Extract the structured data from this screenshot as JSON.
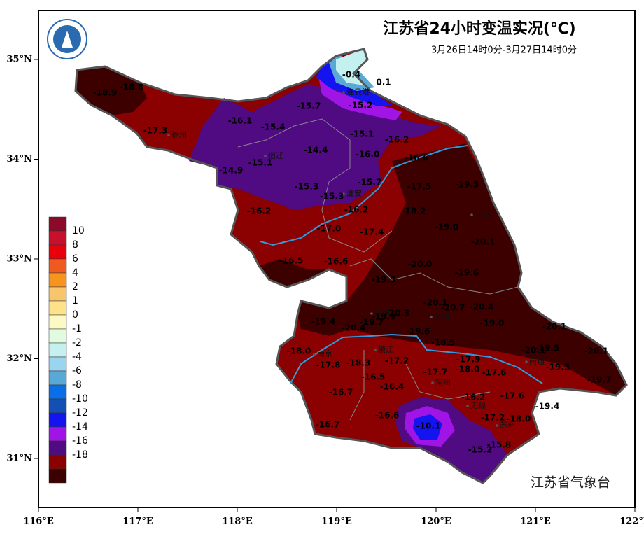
{
  "header": {
    "title": "江苏省24小时变温实况(℃)",
    "subtitle": "3月26日14时0分-3月27日14时0分"
  },
  "footer": "江苏省气象台",
  "axes": {
    "x_labels": [
      "116°E",
      "117°E",
      "118°E",
      "119°E",
      "120°E",
      "121°E",
      "122°E"
    ],
    "y_labels": [
      "35°N",
      "34°N",
      "33°N",
      "32°N",
      "31°N"
    ]
  },
  "legend": {
    "labels": [
      "10",
      "8",
      "6",
      "4",
      "2",
      "1",
      "0",
      "-1",
      "-2",
      "-4",
      "-6",
      "-8",
      "-10",
      "-12",
      "-14",
      "-16",
      "-18"
    ],
    "colors": [
      "#8b0a2a",
      "#c8102e",
      "#e8000b",
      "#f05a1e",
      "#f7941d",
      "#f7c56b",
      "#fde28a",
      "#fdf9c4",
      "#e0fbe0",
      "#c4f0f0",
      "#9ad4ee",
      "#5aa8d6",
      "#0a6ee6",
      "#1450b4",
      "#1414f0",
      "#a014e6",
      "#500a82",
      "#8b0000",
      "#3c0000"
    ]
  },
  "cities": [
    "连云港",
    "徐州",
    "宿迁",
    "淮安",
    "盐城",
    "扬州",
    "泰州",
    "镇江",
    "南京",
    "南通",
    "常州",
    "无锡",
    "苏州"
  ],
  "stations": [
    "-0.4",
    "0.1",
    "-18.9",
    "-18.8",
    "-15.7",
    "-15.2",
    "-16.1",
    "-15.4",
    "-17.3",
    "-15.1",
    "-16.2",
    "-14.4",
    "-16.0",
    "-16.6",
    "-15.1",
    "-14.9",
    "-15.7",
    "-17.5",
    "-19.3",
    "-15.3",
    "-15.3",
    "-16.2",
    "-18.2",
    "-16.2",
    "-17.0",
    "-17.4",
    "-19.0",
    "-20.1",
    "-16.5",
    "-16.6",
    "-20.0",
    "-19.6",
    "-19.3",
    "-20.1",
    "-20.7",
    "-20.4",
    "-20.3",
    "-19.9",
    "-19.4",
    "-20.4",
    "-19.7",
    "-19.0",
    "-20.1",
    "-19.6",
    "-18.5",
    "-18.0",
    "-20.1",
    "-19.5",
    "-20.1",
    "-18.3",
    "-17.2",
    "-17.8",
    "-17.9",
    "-18.0",
    "-17.7",
    "-17.6",
    "-19.3",
    "-19.7",
    "-16.5",
    "-16.4",
    "-16.7",
    "-16.2",
    "-17.6",
    "-19.4",
    "-16.6",
    "-17.2",
    "-18.0",
    "-16.7",
    "-10.1",
    "-15.8",
    "-15.2"
  ]
}
